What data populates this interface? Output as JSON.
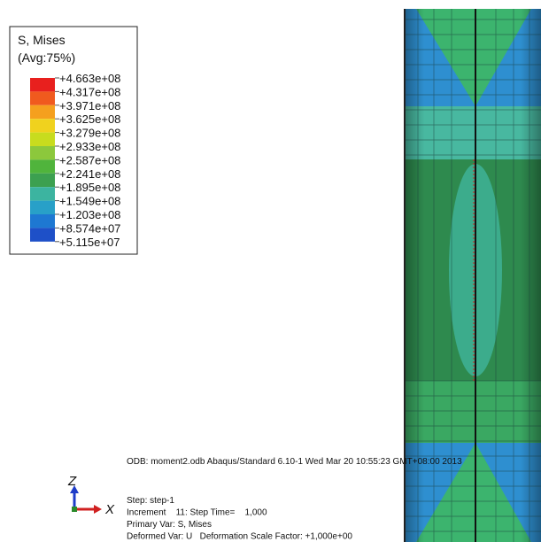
{
  "legend": {
    "title": "S, Mises",
    "subtitle": "(Avg:75%)",
    "labels": [
      "+4.663e+08",
      "+4.317e+08",
      "+3.971e+08",
      "+3.625e+08",
      "+3.279e+08",
      "+2.933e+08",
      "+2.587e+08",
      "+2.241e+08",
      "+1.895e+08",
      "+1.549e+08",
      "+1.203e+08",
      "+8.574e+07",
      "+5.115e+07"
    ],
    "colors": [
      "#e8201e",
      "#f05a1e",
      "#f5a01e",
      "#f0d21e",
      "#c8dc1e",
      "#8cc83c",
      "#50b43c",
      "#3ca050",
      "#3cb4a0",
      "#28a0c8",
      "#1e78d2",
      "#1e50c8"
    ]
  },
  "triad": {
    "z": "Z",
    "x": "X"
  },
  "info": {
    "odb": "ODB: moment2.odb Abaqus/Standard 6.10-1 Wed Mar 20 10:55:23 GMT+08:00 2013",
    "lines": [
      "Step: step-1",
      "Increment    11: Step Time=    1,000",
      "Primary Var: S, Mises",
      "Deformed Var: U   Deformation Scale Factor: +1,000e+00"
    ]
  }
}
